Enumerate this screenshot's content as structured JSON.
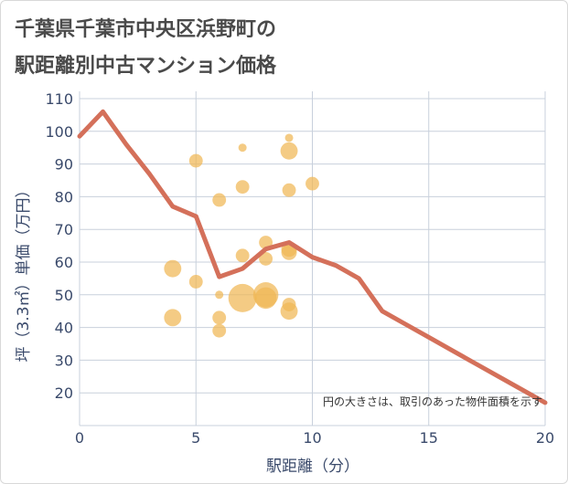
{
  "title_line1": "千葉県千葉市中央区浜野町の",
  "title_line2": "駅距離別中古マンション価格",
  "colors": {
    "bubble": "#f0b755",
    "line": "#d4705a",
    "grid": "#c8d0dc",
    "axis_text": "#3a4a6b"
  },
  "chart_data": {
    "type": "scatter",
    "xlabel": "駅距離（分）",
    "ylabel": "坪（3.3㎡）単価（万円）",
    "xlim": [
      0,
      20
    ],
    "ylim": [
      10,
      110
    ],
    "x_ticks": [
      0,
      5,
      10,
      15,
      20
    ],
    "y_ticks": [
      20,
      30,
      40,
      50,
      60,
      70,
      80,
      90,
      100,
      110
    ],
    "grid": true,
    "annotation": "円の大きさは、取引のあった物件面積を示す",
    "bubbles": [
      {
        "x": 4,
        "y": 58,
        "size": 5
      },
      {
        "x": 4,
        "y": 43,
        "size": 5
      },
      {
        "x": 5,
        "y": 91,
        "size": 3
      },
      {
        "x": 5,
        "y": 54,
        "size": 3
      },
      {
        "x": 6,
        "y": 79,
        "size": 3
      },
      {
        "x": 6,
        "y": 50,
        "size": 1
      },
      {
        "x": 6,
        "y": 43,
        "size": 3
      },
      {
        "x": 6,
        "y": 39,
        "size": 3
      },
      {
        "x": 7,
        "y": 95,
        "size": 1
      },
      {
        "x": 7,
        "y": 83,
        "size": 3
      },
      {
        "x": 7,
        "y": 62,
        "size": 3
      },
      {
        "x": 7,
        "y": 49,
        "size": 14
      },
      {
        "x": 8,
        "y": 66,
        "size": 3
      },
      {
        "x": 8,
        "y": 61,
        "size": 3
      },
      {
        "x": 8,
        "y": 50,
        "size": 11
      },
      {
        "x": 8,
        "y": 49,
        "size": 8
      },
      {
        "x": 9,
        "y": 98,
        "size": 1
      },
      {
        "x": 9,
        "y": 94,
        "size": 5
      },
      {
        "x": 9,
        "y": 82,
        "size": 3
      },
      {
        "x": 9,
        "y": 64,
        "size": 4
      },
      {
        "x": 9,
        "y": 63,
        "size": 4
      },
      {
        "x": 9,
        "y": 47,
        "size": 3
      },
      {
        "x": 9,
        "y": 45,
        "size": 5
      },
      {
        "x": 10,
        "y": 84,
        "size": 3
      }
    ],
    "line": {
      "x": [
        0,
        1,
        2,
        3,
        4,
        5,
        6,
        7,
        8,
        9,
        10,
        11,
        12,
        13,
        14,
        15,
        16,
        17,
        18,
        19,
        20
      ],
      "y": [
        98.5,
        106,
        96,
        87,
        77,
        74,
        55.5,
        58,
        64,
        66,
        61.5,
        59,
        55,
        45,
        41,
        37,
        33,
        29,
        25,
        21,
        17
      ]
    }
  }
}
